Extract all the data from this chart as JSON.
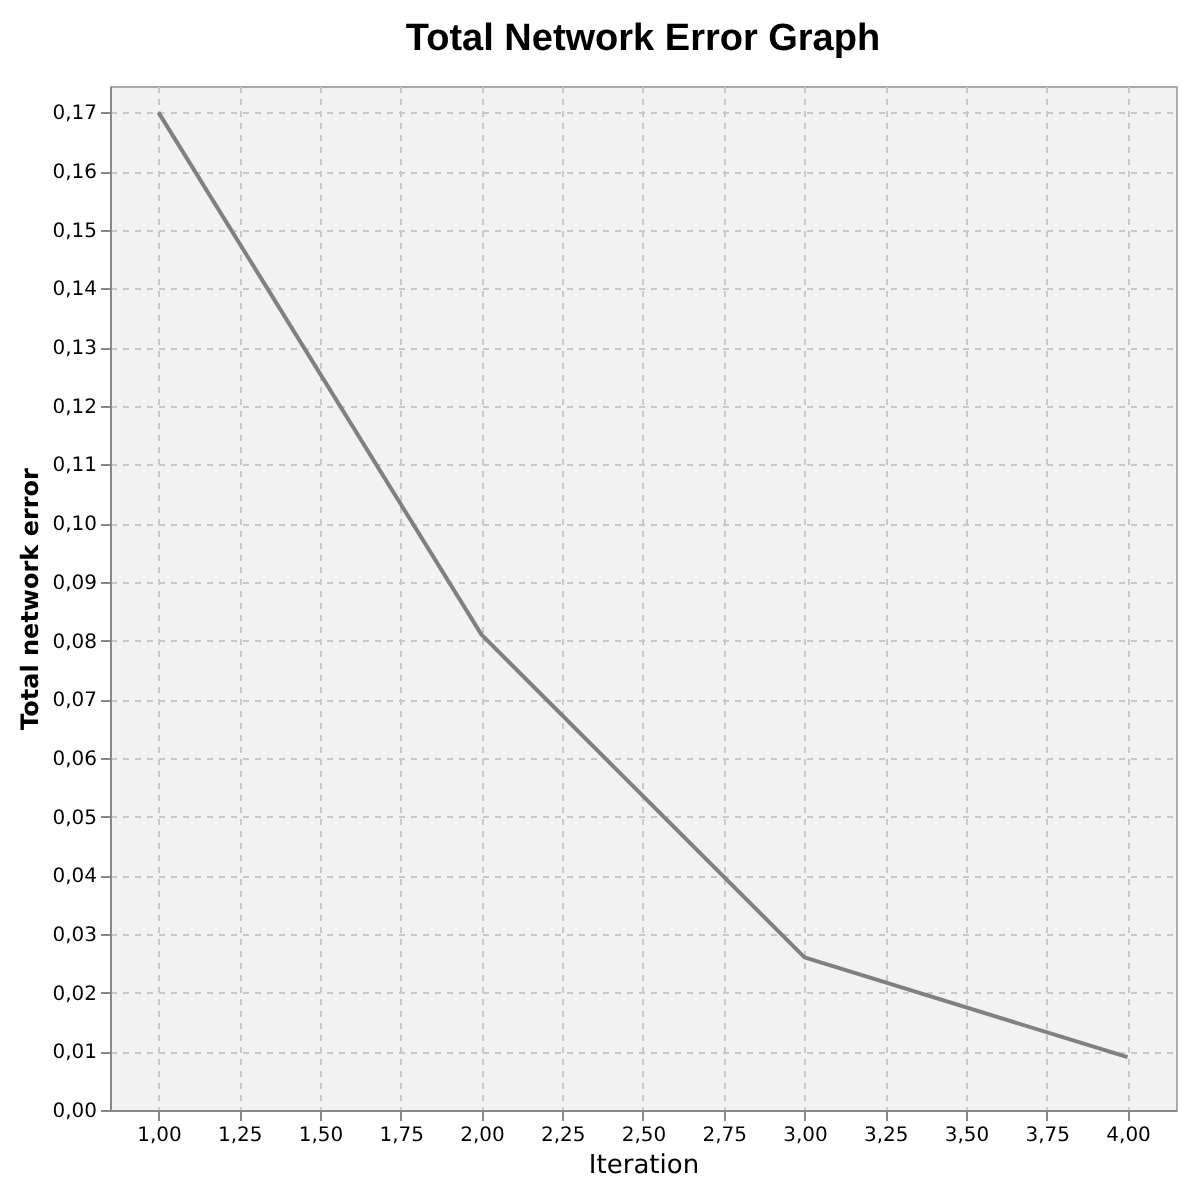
{
  "chart_data": {
    "type": "line",
    "title": "Total Network Error Graph",
    "xlabel": "Iteration",
    "ylabel": "Total network error",
    "x": [
      1,
      2,
      3,
      4
    ],
    "series": [
      {
        "color": "#808080",
        "values": [
          0.17,
          0.081,
          0.026,
          0.009
        ]
      }
    ],
    "xlim": [
      0.85,
      4.15
    ],
    "xticks": [
      {
        "value": 1,
        "label": "1,00"
      },
      {
        "value": 1.25,
        "label": "1,25"
      },
      {
        "value": 1.5,
        "label": "1,50"
      },
      {
        "value": 1.75,
        "label": "1,75"
      },
      {
        "value": 2,
        "label": "2,00"
      },
      {
        "value": 2.25,
        "label": "2,25"
      },
      {
        "value": 2.5,
        "label": "2,50"
      },
      {
        "value": 2.75,
        "label": "2,75"
      },
      {
        "value": 3,
        "label": "3,00"
      },
      {
        "value": 3.25,
        "label": "3,25"
      },
      {
        "value": 3.5,
        "label": "3,50"
      },
      {
        "value": 3.75,
        "label": "3,75"
      },
      {
        "value": 4,
        "label": "4,00"
      }
    ],
    "ylim": [
      0,
      0.1745
    ],
    "yticks": [
      {
        "value": 0,
        "label": "0,00"
      },
      {
        "value": 0.01,
        "label": "0,01"
      },
      {
        "value": 0.02,
        "label": "0,02"
      },
      {
        "value": 0.03,
        "label": "0,03"
      },
      {
        "value": 0.04,
        "label": "0,04"
      },
      {
        "value": 0.05,
        "label": "0,05"
      },
      {
        "value": 0.06,
        "label": "0,06"
      },
      {
        "value": 0.07,
        "label": "0,07"
      },
      {
        "value": 0.08,
        "label": "0,08"
      },
      {
        "value": 0.09,
        "label": "0,09"
      },
      {
        "value": 0.1,
        "label": "0,10"
      },
      {
        "value": 0.11,
        "label": "0,11"
      },
      {
        "value": 0.12,
        "label": "0,12"
      },
      {
        "value": 0.13,
        "label": "0,13"
      },
      {
        "value": 0.14,
        "label": "0,14"
      },
      {
        "value": 0.15,
        "label": "0,15"
      },
      {
        "value": 0.16,
        "label": "0,16"
      },
      {
        "value": 0.17,
        "label": "0,17"
      }
    ],
    "grid": true,
    "line_style": "solid"
  }
}
